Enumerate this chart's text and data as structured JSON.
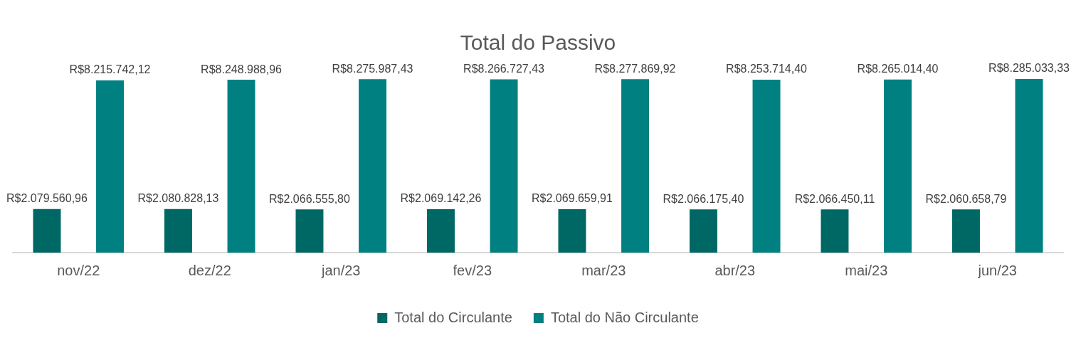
{
  "chart_data": {
    "type": "bar",
    "title": "Total do Passivo",
    "categories": [
      "nov/22",
      "dez/22",
      "jan/23",
      "fev/23",
      "mar/23",
      "abr/23",
      "mai/23",
      "jun/23"
    ],
    "series": [
      {
        "name": "Total do Circulante",
        "color": "#006864",
        "values": [
          2079560.96,
          2080828.13,
          2066555.8,
          2069142.26,
          2069659.91,
          2066175.4,
          2066450.11,
          2060658.79
        ],
        "value_labels": [
          "R$2.079.560,96",
          "R$2.080.828,13",
          "R$2.066.555,80",
          "R$2.069.142,26",
          "R$2.069.659,91",
          "R$2.066.175,40",
          "R$2.066.450,11",
          "R$2.060.658,79"
        ]
      },
      {
        "name": "Total do Não Circulante",
        "color": "#008080",
        "values": [
          8215742.12,
          8248988.96,
          8275987.43,
          8266727.43,
          8277869.92,
          8253714.4,
          8265014.4,
          8285033.33
        ],
        "value_labels": [
          "R$8.215.742,12",
          "R$8.248.988,96",
          "R$8.275.987,43",
          "R$8.266.727,43",
          "R$8.277.869,92",
          "R$8.253.714,40",
          "R$8.265.014,40",
          "R$8.285.033,33"
        ]
      }
    ],
    "tick_labels": "x",
    "grid": false,
    "legend": "bottom"
  }
}
